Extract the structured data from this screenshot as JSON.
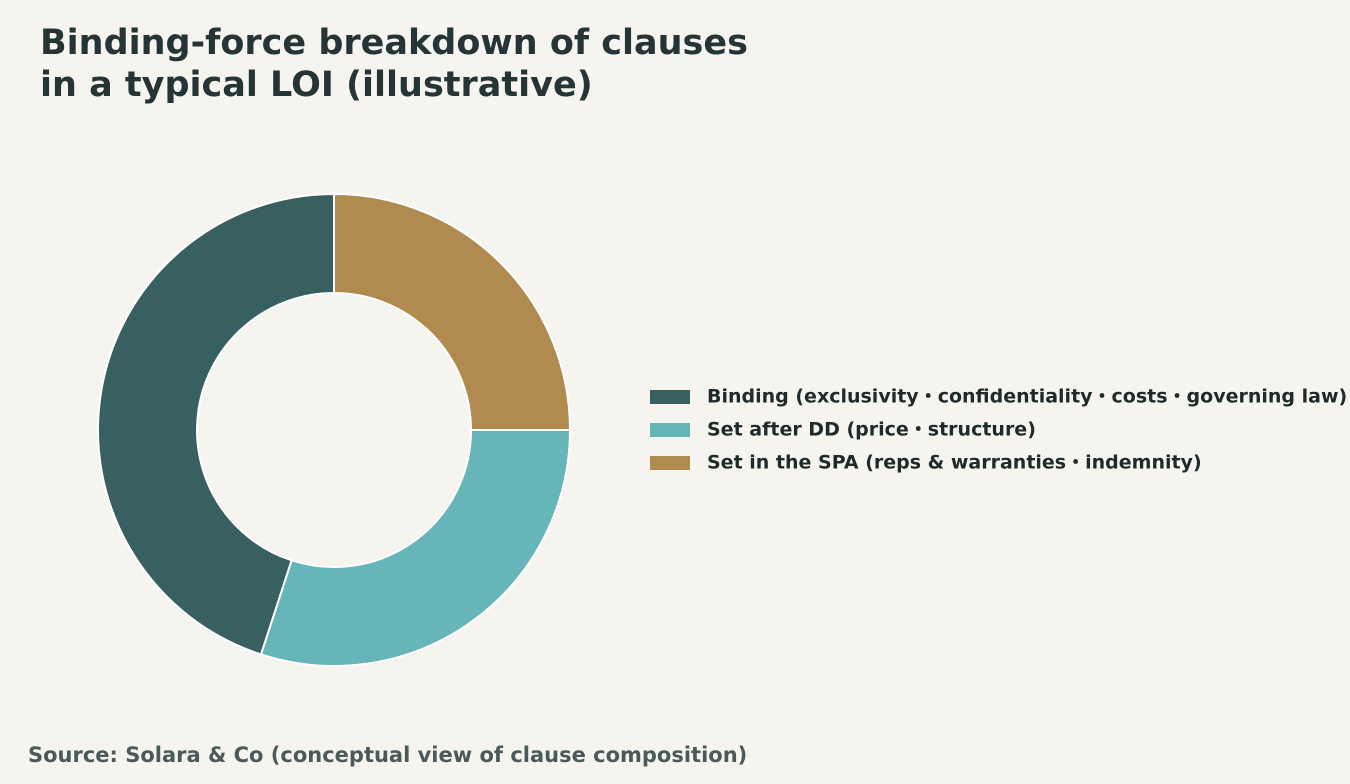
{
  "chart_data": {
    "type": "donut",
    "title": [
      "Binding-force breakdown of clauses",
      "in a typical LOI (illustrative)"
    ],
    "series": [
      {
        "name": "Binding (exclusivity・confidentiality・costs・governing law)",
        "color": "#386060",
        "value": 45
      },
      {
        "name": "Set after DD (price・structure)",
        "color": "#66b5b9",
        "value": 30
      },
      {
        "name": "Set in the SPA (reps & warranties・indemnity)",
        "color": "#b08a4e",
        "value": 25
      }
    ],
    "start_angle": 90,
    "direction": "counterclockwise",
    "legend": "right",
    "source": "Source: Solara & Co (conceptual view of clause composition)"
  }
}
